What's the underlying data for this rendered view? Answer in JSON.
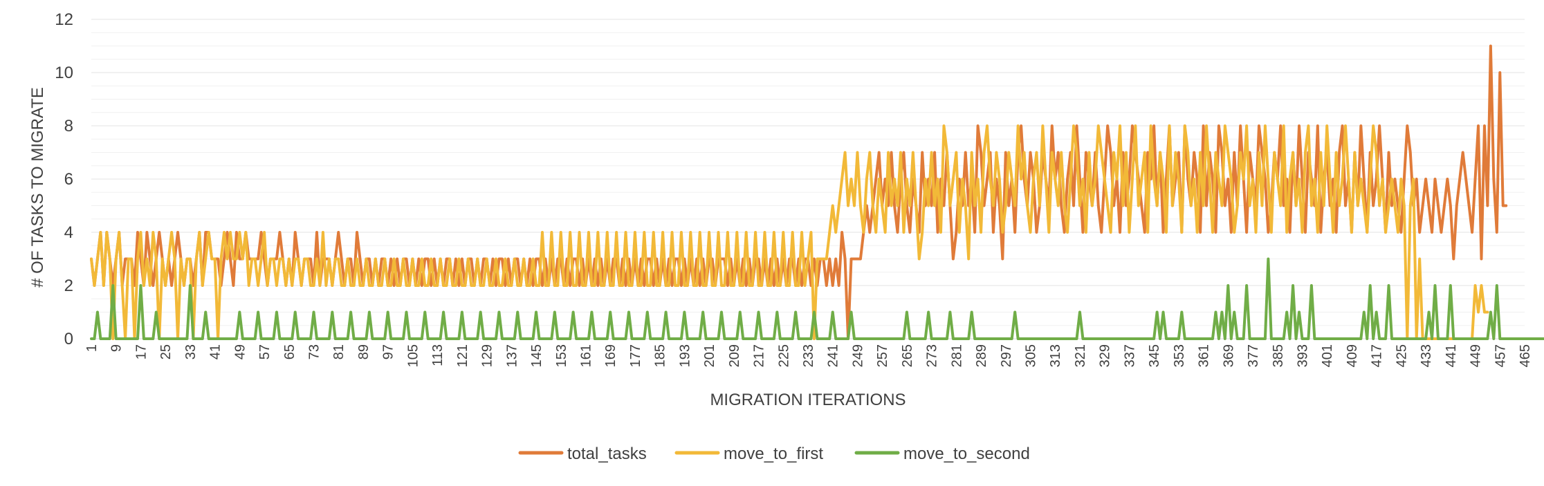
{
  "chart_data": {
    "type": "line",
    "title": "",
    "xlabel": "MIGRATION ITERATIONS",
    "ylabel": "# OF  TASKS TO MIGRATE",
    "ylim": [
      0,
      12
    ],
    "yticks": [
      0,
      2,
      4,
      6,
      8,
      10,
      12
    ],
    "xrange": [
      1,
      465
    ],
    "xtick_labels": [
      "1",
      "9",
      "17",
      "25",
      "33",
      "41",
      "49",
      "57",
      "65",
      "73",
      "81",
      "89",
      "97",
      "105",
      "113",
      "121",
      "129",
      "137",
      "145",
      "153",
      "161",
      "169",
      "177",
      "185",
      "193",
      "201",
      "209",
      "217",
      "225",
      "233",
      "241",
      "249",
      "257",
      "265",
      "273",
      "281",
      "289",
      "297",
      "305",
      "313",
      "321",
      "329",
      "337",
      "345",
      "353",
      "361",
      "369",
      "377",
      "385",
      "393",
      "401",
      "409",
      "417",
      "425",
      "433",
      "441",
      "449",
      "457",
      "465"
    ],
    "grid": true,
    "legend_position": "bottom",
    "series": [
      {
        "name": "total_tasks",
        "color": "#E07B39",
        "values": [
          3,
          2,
          3,
          4,
          2,
          4,
          3,
          2,
          3,
          4,
          2,
          3,
          3,
          3,
          2,
          4,
          3,
          2,
          4,
          3,
          2,
          3,
          4,
          3,
          2,
          3,
          2,
          3,
          4,
          3,
          2,
          3,
          3,
          2,
          3,
          4,
          2,
          4,
          4,
          3,
          3,
          3,
          2,
          3,
          4,
          3,
          2,
          4,
          3,
          3,
          4,
          3,
          3,
          3,
          3,
          4,
          3,
          2,
          3,
          3,
          3,
          4,
          3,
          2,
          3,
          2,
          4,
          3,
          2,
          3,
          3,
          3,
          2,
          4,
          2,
          3,
          3,
          3,
          2,
          3,
          4,
          3,
          2,
          3,
          3,
          2,
          4,
          3,
          2,
          3,
          3,
          2,
          3,
          2,
          3,
          3,
          2,
          3,
          2,
          3,
          2,
          3,
          3,
          2,
          3,
          2,
          3,
          2,
          3,
          3,
          2,
          3,
          2,
          3,
          2,
          3,
          3,
          2,
          3,
          2,
          3,
          2,
          3,
          3,
          2,
          3,
          2,
          3,
          3,
          2,
          3,
          2,
          3,
          3,
          2,
          3,
          2,
          3,
          3,
          2,
          3,
          2,
          3,
          2,
          3,
          3,
          2,
          3,
          2,
          3,
          2,
          3,
          3,
          2,
          3,
          2,
          3,
          3,
          2,
          3,
          2,
          3,
          2,
          3,
          2,
          3,
          2,
          3,
          2,
          3,
          3,
          2,
          3,
          2,
          3,
          2,
          3,
          2,
          3,
          2,
          3,
          3,
          2,
          3,
          2,
          3,
          2,
          3,
          2,
          3,
          3,
          2,
          3,
          2,
          3,
          2,
          3,
          2,
          3,
          2,
          3,
          3,
          2,
          3,
          3,
          3,
          2,
          3,
          2,
          3,
          2,
          3,
          2,
          3,
          2,
          3,
          3,
          2,
          3,
          2,
          3,
          2,
          3,
          2,
          3,
          2,
          3,
          3,
          2,
          3,
          2,
          3,
          3,
          2,
          3,
          2,
          3,
          3,
          2,
          3,
          2,
          3,
          2,
          4,
          3,
          0,
          3,
          3,
          3,
          3,
          4,
          5,
          4,
          5,
          6,
          7,
          5,
          6,
          5,
          7,
          5,
          4,
          6,
          7,
          5,
          4,
          6,
          5,
          4,
          7,
          5,
          6,
          5,
          7,
          4,
          6,
          5,
          7,
          5,
          3,
          4,
          6,
          5,
          7,
          5,
          6,
          4,
          8,
          7,
          5,
          6,
          7,
          4,
          6,
          5,
          3,
          7,
          5,
          6,
          4,
          7,
          8,
          6,
          5,
          7,
          6,
          4,
          5,
          7,
          6,
          5,
          8,
          6,
          7,
          5,
          4,
          6,
          7,
          5,
          8,
          6,
          4,
          7,
          6,
          5,
          7,
          5,
          4,
          6,
          8,
          7,
          5,
          6,
          4,
          7,
          5,
          6,
          8,
          7,
          6,
          5,
          4,
          7,
          6,
          8,
          5,
          7,
          4,
          6,
          8,
          5,
          6,
          7,
          4,
          8,
          6,
          5,
          7,
          6,
          4,
          8,
          5,
          7,
          6,
          4,
          8,
          7,
          5,
          6,
          4,
          7,
          5,
          8,
          6,
          4,
          7,
          6,
          5,
          8,
          7,
          6,
          4,
          5,
          7,
          6,
          8,
          5,
          6,
          4,
          7,
          5,
          8,
          6,
          4,
          7,
          6,
          5,
          8,
          4,
          6,
          7,
          5,
          6,
          4,
          7,
          8,
          5,
          6,
          4,
          7,
          5,
          8,
          6,
          4,
          7,
          5,
          6,
          8,
          6,
          4,
          7,
          5,
          6,
          5,
          4,
          6,
          8,
          7,
          5,
          6,
          4,
          5,
          6,
          5,
          4,
          6,
          5,
          4,
          5,
          6,
          5,
          3,
          5,
          6,
          7,
          6,
          5,
          4,
          6,
          8,
          3,
          8,
          5,
          11,
          6,
          4,
          10,
          5,
          5
        ],
        "note": "approximate reading"
      },
      {
        "name": "move_to_first",
        "color": "#F2B938",
        "values": [
          3,
          2,
          3,
          4,
          2,
          4,
          3,
          0,
          3,
          4,
          2,
          0,
          3,
          3,
          0,
          3,
          4,
          2,
          3,
          2,
          4,
          3,
          0,
          3,
          2,
          3,
          4,
          3,
          0,
          3,
          2,
          3,
          3,
          0,
          3,
          4,
          2,
          3,
          4,
          3,
          3,
          0,
          3,
          4,
          3,
          4,
          3,
          3,
          4,
          3,
          4,
          2,
          3,
          3,
          2,
          3,
          4,
          2,
          3,
          3,
          2,
          3,
          3,
          2,
          3,
          2,
          3,
          3,
          2,
          3,
          3,
          2,
          2,
          3,
          2,
          4,
          2,
          3,
          2,
          3,
          3,
          2,
          2,
          3,
          2,
          2,
          3,
          2,
          2,
          3,
          2,
          2,
          3,
          2,
          2,
          3,
          2,
          2,
          3,
          2,
          2,
          3,
          2,
          2,
          3,
          2,
          2,
          3,
          2,
          2,
          3,
          2,
          2,
          3,
          2,
          2,
          3,
          2,
          2,
          3,
          2,
          2,
          3,
          2,
          2,
          3,
          2,
          2,
          3,
          2,
          2,
          3,
          2,
          2,
          3,
          2,
          2,
          3,
          2,
          2,
          3,
          2,
          2,
          3,
          2,
          2,
          4,
          2,
          2,
          4,
          2,
          2,
          4,
          2,
          2,
          4,
          2,
          2,
          4,
          2,
          2,
          4,
          2,
          2,
          4,
          2,
          2,
          4,
          2,
          2,
          4,
          2,
          2,
          4,
          2,
          2,
          4,
          2,
          2,
          4,
          2,
          2,
          4,
          2,
          2,
          4,
          2,
          2,
          4,
          2,
          2,
          4,
          2,
          2,
          4,
          2,
          2,
          4,
          2,
          2,
          4,
          2,
          2,
          4,
          2,
          2,
          4,
          2,
          2,
          4,
          2,
          2,
          4,
          2,
          2,
          4,
          2,
          2,
          4,
          2,
          2,
          4,
          2,
          2,
          4,
          2,
          2,
          4,
          2,
          2,
          4,
          2,
          3,
          4,
          0,
          3,
          3,
          3,
          3,
          4,
          5,
          4,
          5,
          6,
          7,
          5,
          6,
          5,
          7,
          5,
          4,
          6,
          7,
          5,
          4,
          6,
          5,
          4,
          7,
          5,
          6,
          5,
          7,
          4,
          6,
          5,
          7,
          5,
          3,
          4,
          6,
          5,
          7,
          5,
          6,
          4,
          8,
          7,
          5,
          6,
          7,
          4,
          6,
          5,
          3,
          7,
          5,
          6,
          4,
          7,
          8,
          6,
          5,
          7,
          6,
          4,
          5,
          7,
          6,
          5,
          8,
          6,
          7,
          5,
          4,
          6,
          7,
          5,
          8,
          6,
          4,
          7,
          6,
          5,
          7,
          5,
          4,
          6,
          8,
          7,
          5,
          6,
          4,
          7,
          5,
          6,
          8,
          7,
          6,
          5,
          4,
          7,
          6,
          8,
          5,
          7,
          4,
          6,
          8,
          5,
          6,
          7,
          4,
          8,
          6,
          5,
          7,
          6,
          4,
          8,
          5,
          7,
          6,
          4,
          8,
          7,
          5,
          6,
          4,
          7,
          5,
          8,
          6,
          4,
          7,
          6,
          5,
          8,
          7,
          6,
          4,
          5,
          7,
          6,
          8,
          5,
          6,
          4,
          7,
          5,
          8,
          6,
          4,
          7,
          6,
          5,
          8,
          4,
          6,
          7,
          5,
          6,
          4,
          7,
          8,
          5,
          6,
          4,
          7,
          5,
          8,
          6,
          4,
          7,
          5,
          6,
          8,
          6,
          4,
          7,
          5,
          6,
          5,
          4,
          6,
          8,
          7,
          5,
          6,
          4,
          5,
          6,
          5,
          4,
          6,
          5,
          0,
          5,
          6,
          0,
          3,
          0,
          0,
          0,
          0,
          0,
          0,
          0,
          0,
          0,
          0,
          0,
          0,
          0,
          0,
          0,
          0,
          0,
          2,
          1,
          2,
          1,
          1
        ],
        "note": "approximate reading"
      },
      {
        "name": "move_to_second",
        "color": "#70AD47",
        "values": [
          0,
          0,
          1,
          0,
          0,
          0,
          0,
          2,
          0,
          0,
          0,
          0,
          0,
          0,
          0,
          0,
          2,
          0,
          0,
          0,
          0,
          1,
          0,
          0,
          0,
          0,
          0,
          0,
          0,
          0,
          0,
          0,
          2,
          0,
          0,
          0,
          0,
          1,
          0,
          0,
          0,
          0,
          0,
          0,
          0,
          0,
          0,
          0,
          1,
          0,
          0,
          0,
          0,
          0,
          1,
          0,
          0,
          0,
          0,
          0,
          1,
          0,
          0,
          0,
          0,
          0,
          1,
          0,
          0,
          0,
          0,
          0,
          1,
          0,
          0,
          0,
          0,
          0,
          1,
          0,
          0,
          0,
          0,
          0,
          1,
          0,
          0,
          0,
          0,
          0,
          1,
          0,
          0,
          0,
          0,
          0,
          1,
          0,
          0,
          0,
          0,
          0,
          1,
          0,
          0,
          0,
          0,
          0,
          1,
          0,
          0,
          0,
          0,
          0,
          1,
          0,
          0,
          0,
          0,
          0,
          1,
          0,
          0,
          0,
          0,
          0,
          1,
          0,
          0,
          0,
          0,
          0,
          1,
          0,
          0,
          0,
          0,
          0,
          1,
          0,
          0,
          0,
          0,
          0,
          1,
          0,
          0,
          0,
          0,
          0,
          1,
          0,
          0,
          0,
          0,
          0,
          1,
          0,
          0,
          0,
          0,
          0,
          1,
          0,
          0,
          0,
          0,
          0,
          1,
          0,
          0,
          0,
          0,
          0,
          1,
          0,
          0,
          0,
          0,
          0,
          1,
          0,
          0,
          0,
          0,
          0,
          1,
          0,
          0,
          0,
          0,
          0,
          1,
          0,
          0,
          0,
          0,
          0,
          1,
          0,
          0,
          0,
          0,
          0,
          1,
          0,
          0,
          0,
          0,
          0,
          1,
          0,
          0,
          0,
          0,
          0,
          1,
          0,
          0,
          0,
          0,
          0,
          1,
          0,
          0,
          0,
          0,
          0,
          1,
          0,
          0,
          0,
          0,
          0,
          1,
          0,
          0,
          0,
          0,
          0,
          1,
          0,
          0,
          0,
          0,
          0,
          1,
          0,
          0,
          0,
          0,
          0,
          0,
          0,
          0,
          0,
          0,
          0,
          0,
          0,
          0,
          0,
          0,
          0,
          1,
          0,
          0,
          0,
          0,
          0,
          0,
          1,
          0,
          0,
          0,
          0,
          0,
          0,
          1,
          0,
          0,
          0,
          0,
          0,
          0,
          1,
          0,
          0,
          0,
          0,
          0,
          0,
          0,
          0,
          0,
          0,
          0,
          0,
          0,
          1,
          0,
          0,
          0,
          0,
          0,
          0,
          0,
          0,
          0,
          0,
          0,
          0,
          0,
          0,
          0,
          0,
          0,
          0,
          0,
          0,
          1,
          0,
          0,
          0,
          0,
          0,
          0,
          0,
          0,
          0,
          0,
          0,
          0,
          0,
          0,
          0,
          0,
          0,
          0,
          0,
          0,
          0,
          0,
          0,
          0,
          1,
          0,
          1,
          0,
          0,
          0,
          0,
          0,
          1,
          0,
          0,
          0,
          0,
          0,
          0,
          0,
          0,
          0,
          0,
          1,
          0,
          1,
          0,
          2,
          0,
          1,
          0,
          0,
          0,
          2,
          0,
          0,
          0,
          0,
          0,
          0,
          3,
          0,
          0,
          0,
          0,
          0,
          1,
          0,
          2,
          0,
          1,
          0,
          0,
          0,
          2,
          0,
          0,
          0,
          0,
          0,
          0,
          0,
          0,
          0,
          0,
          0,
          0,
          0,
          0,
          0,
          0,
          1,
          0,
          2,
          0,
          1,
          0,
          0,
          0,
          2,
          0,
          0,
          0,
          0,
          0,
          0,
          0,
          0,
          0,
          0,
          0,
          0,
          1,
          0,
          2,
          0,
          0,
          0,
          0,
          2,
          0,
          0,
          0,
          0,
          0,
          0,
          0,
          0,
          0,
          0,
          0,
          0,
          1,
          0,
          2,
          0,
          0,
          0,
          0,
          0,
          0,
          0,
          0,
          0,
          0,
          0,
          0,
          0,
          0,
          0,
          0,
          0,
          0,
          0,
          0,
          0,
          0,
          0,
          0,
          0,
          0,
          0,
          0
        ],
        "note": "approximate reading"
      }
    ]
  }
}
